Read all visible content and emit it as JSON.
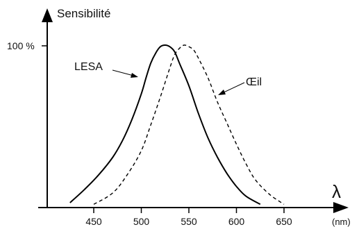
{
  "chart_data": {
    "type": "line",
    "ylabel": "Sensibilité",
    "xlabel_symbol": "λ",
    "xlabel_unit": "(nm)",
    "y_tick_label": "100 %",
    "x_ticks": [
      450,
      500,
      550,
      600,
      650
    ],
    "xlim": [
      400,
      665
    ],
    "ylim": [
      0,
      100
    ],
    "series": [
      {
        "name": "LESA",
        "style": "solid",
        "x": [
          425,
          440,
          455,
          470,
          480,
          490,
          500,
          505,
          510,
          515,
          520,
          525,
          530,
          535,
          540,
          550,
          560,
          570,
          580,
          590,
          600,
          610,
          625
        ],
        "y": [
          3,
          11,
          20,
          31,
          41,
          54,
          70,
          80,
          89,
          95,
          99,
          100,
          99,
          96,
          89,
          75,
          58,
          43,
          31,
          21,
          13,
          7,
          2
        ]
      },
      {
        "name": "Œil",
        "style": "dashed",
        "x": [
          450,
          470,
          485,
          500,
          510,
          520,
          530,
          535,
          540,
          545,
          550,
          555,
          560,
          570,
          580,
          590,
          600,
          610,
          620,
          635,
          650
        ],
        "y": [
          2,
          9,
          20,
          35,
          51,
          68,
          86,
          94,
          98,
          100,
          99,
          97,
          92,
          80,
          65,
          52,
          39,
          27,
          17,
          8,
          2
        ]
      }
    ]
  }
}
